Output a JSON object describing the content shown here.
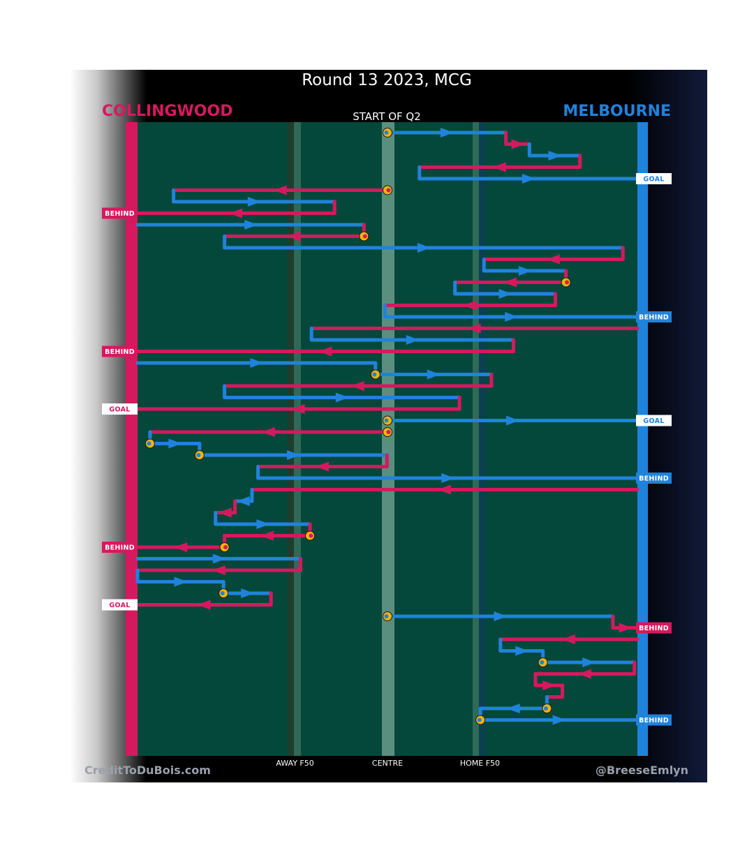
{
  "chart_data": {
    "type": "chain-flow",
    "title": "Round 13 2023, MCG",
    "subtitle": "START OF Q2",
    "teams": {
      "left": {
        "name": "COLLINGWOOD",
        "color": "#d6195e"
      },
      "right": {
        "name": "MELBOURNE",
        "color": "#1f83dc"
      }
    },
    "x_axis": {
      "range": [
        0,
        100
      ],
      "ticks": [
        {
          "label": "AWAY F50",
          "x": 31.5
        },
        {
          "label": "CENTRE",
          "x": 50
        },
        {
          "label": "HOME F50",
          "x": 68.5
        }
      ]
    },
    "footer": {
      "left": "CreditToDuBois.com",
      "right": "@BreeseEmlyn"
    },
    "colors": {
      "collingwood": "#d6195e",
      "melbourne": "#1f83dc",
      "field": "#04483b",
      "stoppage": "#f4b400"
    },
    "chains": [
      {
        "team": "MEL",
        "start": 50,
        "end": 73.7,
        "stoppage": true
      },
      {
        "team": "COL",
        "start": 73.7,
        "end": 78.4
      },
      {
        "team": "MEL",
        "start": 78.4,
        "end": 88.5
      },
      {
        "team": "COL",
        "start": 88.5,
        "end": 56.4
      },
      {
        "team": "MEL",
        "start": 56.4,
        "end": 100,
        "result": "GOAL"
      },
      {
        "team": "COL",
        "start": 50,
        "end": 7.2,
        "stoppage": true
      },
      {
        "team": "MEL",
        "start": 7.2,
        "end": 39.4
      },
      {
        "team": "COL",
        "start": 39.4,
        "end": 0,
        "result": "BEHIND"
      },
      {
        "team": "MEL",
        "start": 0,
        "end": 45.3
      },
      {
        "team": "COL",
        "start": 45.3,
        "end": 17.4,
        "stoppage": true
      },
      {
        "team": "MEL",
        "start": 17.4,
        "end": 97.1
      },
      {
        "team": "COL",
        "start": 97.1,
        "end": 69.3
      },
      {
        "team": "MEL",
        "start": 69.3,
        "end": 85.7
      },
      {
        "team": "COL",
        "start": 85.7,
        "end": 63.5,
        "stoppage": true
      },
      {
        "team": "MEL",
        "start": 63.5,
        "end": 83.6
      },
      {
        "team": "COL",
        "start": 83.6,
        "end": 49.5
      },
      {
        "team": "MEL",
        "start": 49.5,
        "end": 100,
        "result": "BEHIND"
      },
      {
        "team": "COL",
        "start": 100,
        "end": 34.8
      },
      {
        "team": "MEL",
        "start": 34.8,
        "end": 75.2
      },
      {
        "team": "COL",
        "start": 75.2,
        "end": 0,
        "result": "BEHIND"
      },
      {
        "team": "MEL",
        "start": 0,
        "end": 47.6
      },
      {
        "team": "MEL",
        "start": 47.6,
        "end": 70.8,
        "stoppage": true
      },
      {
        "team": "COL",
        "start": 70.8,
        "end": 17.4
      },
      {
        "team": "MEL",
        "start": 17.4,
        "end": 64.4
      },
      {
        "team": "COL",
        "start": 64.4,
        "end": 0,
        "result": "GOAL"
      },
      {
        "team": "MEL",
        "start": 50,
        "end": 100,
        "result": "GOAL",
        "stoppage": true
      },
      {
        "team": "COL",
        "start": 50,
        "end": 2.5,
        "stoppage": true
      },
      {
        "team": "MEL",
        "start": 2.5,
        "end": 12.4,
        "stoppage": true
      },
      {
        "team": "MEL",
        "start": 12.4,
        "end": 49.9,
        "stoppage": true
      },
      {
        "team": "COL",
        "start": 49.9,
        "end": 24.1
      },
      {
        "team": "MEL",
        "start": 24.1,
        "end": 100,
        "result": "BEHIND"
      },
      {
        "team": "COL",
        "start": 100,
        "end": 22.9
      },
      {
        "team": "MEL",
        "start": 22.9,
        "end": 19.5
      },
      {
        "team": "COL",
        "start": 19.5,
        "end": 15.6
      },
      {
        "team": "MEL",
        "start": 15.6,
        "end": 34.5
      },
      {
        "team": "COL",
        "start": 34.5,
        "end": 17.4,
        "stoppage": true
      },
      {
        "team": "COL",
        "start": 17.4,
        "end": 0,
        "result": "BEHIND",
        "stoppage": true
      },
      {
        "team": "MEL",
        "start": 0,
        "end": 32.6
      },
      {
        "team": "COL",
        "start": 32.6,
        "end": 0
      },
      {
        "team": "MEL",
        "start": 0,
        "end": 17.2
      },
      {
        "team": "MEL",
        "start": 17.2,
        "end": 26.7,
        "stoppage": true
      },
      {
        "team": "COL",
        "start": 26.7,
        "end": 0,
        "result": "GOAL"
      },
      {
        "team": "MEL",
        "start": 50,
        "end": 95.1,
        "stoppage": true
      },
      {
        "team": "COL",
        "start": 95.1,
        "end": 100,
        "result": "BEHIND"
      },
      {
        "team": "COL",
        "start": 100,
        "end": 72.6
      },
      {
        "team": "MEL",
        "start": 72.6,
        "end": 81.1
      },
      {
        "team": "MEL",
        "start": 81.1,
        "end": 99.4,
        "stoppage": true
      },
      {
        "team": "COL",
        "start": 99.4,
        "end": 79.6
      },
      {
        "team": "COL",
        "start": 79.6,
        "end": 85.0
      },
      {
        "team": "COL",
        "start": 85.0,
        "end": 81.9
      },
      {
        "team": "MEL",
        "start": 81.9,
        "end": 68.6,
        "stoppage": true
      },
      {
        "team": "MEL",
        "start": 68.6,
        "end": 100,
        "result": "BEHIND",
        "stoppage": true
      }
    ]
  }
}
